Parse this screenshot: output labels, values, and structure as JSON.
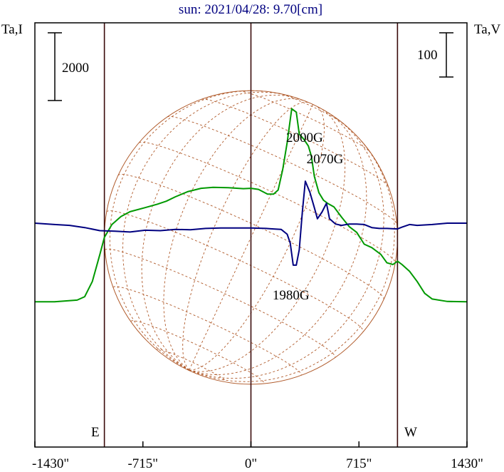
{
  "chart_data": {
    "type": "line",
    "title": "sun: 2021/04/28: 9.70[cm]",
    "left_axis_label": "Ta,I",
    "right_axis_label": "Ta,V",
    "x_ticks": [
      -1430,
      -715,
      0,
      715,
      1430
    ],
    "x_tick_labels": [
      "-1430\"",
      "-715\"",
      "0\"",
      "715\"",
      "1430\""
    ],
    "xlim": [
      -1430,
      1430
    ],
    "vertical_lines": [
      -970,
      0,
      970
    ],
    "limb_labels": {
      "east": "E",
      "west": "W"
    },
    "scale_bars": {
      "left": "2000",
      "right": "100"
    },
    "annotations": [
      {
        "text": "2000G",
        "x": 355,
        "y": 2820
      },
      {
        "text": "2070G",
        "x": 490,
        "y": 2190
      },
      {
        "text": "1980G",
        "x": 265,
        "y": -1830
      }
    ],
    "series": [
      {
        "id": "I",
        "color": "#009900",
        "x": [
          -1430,
          -1300,
          -1150,
          -1100,
          -1050,
          -1000,
          -970,
          -920,
          -860,
          -800,
          -700,
          -620,
          -560,
          -500,
          -420,
          -330,
          -250,
          -150,
          -50,
          0,
          50,
          110,
          150,
          180,
          210,
          240,
          270,
          300,
          320,
          350,
          380,
          400,
          420,
          450,
          480,
          510,
          550,
          600,
          650,
          700,
          750,
          800,
          860,
          900,
          940,
          970,
          1000,
          1050,
          1100,
          1150,
          1200,
          1300,
          1430
        ],
        "y": [
          -1900,
          -1900,
          -1850,
          -1750,
          -1300,
          -500,
          0,
          380,
          620,
          760,
          880,
          980,
          1070,
          1200,
          1350,
          1450,
          1480,
          1470,
          1440,
          1450,
          1420,
          1280,
          1280,
          1400,
          2000,
          2800,
          3800,
          3700,
          3050,
          2900,
          2700,
          2400,
          1800,
          1320,
          1100,
          1000,
          900,
          600,
          320,
          150,
          -200,
          -300,
          -500,
          -750,
          -800,
          -700,
          -800,
          -1000,
          -1300,
          -1650,
          -1820,
          -1890,
          -1900
        ]
      },
      {
        "id": "V",
        "color": "#000080",
        "x": [
          -1430,
          -1300,
          -1200,
          -1100,
          -1000,
          -900,
          -800,
          -700,
          -600,
          -500,
          -400,
          -300,
          -200,
          -100,
          0,
          100,
          150,
          200,
          240,
          260,
          280,
          300,
          320,
          340,
          360,
          390,
          420,
          440,
          470,
          500,
          520,
          560,
          600,
          650,
          700,
          750,
          800,
          850,
          900,
          970,
          1000,
          1050,
          1100,
          1200,
          1300,
          1430
        ],
        "y": [
          0,
          -3,
          -5,
          -10,
          -17,
          -18,
          -20,
          -16,
          -17,
          -14,
          -15,
          -12,
          -11,
          -11,
          -11,
          -12,
          -13,
          -14,
          -25,
          -45,
          -95,
          -95,
          -60,
          25,
          95,
          70,
          35,
          10,
          25,
          45,
          10,
          -2,
          -5,
          -2,
          -2,
          -3,
          -10,
          -12,
          -12,
          -13,
          -9,
          -3,
          -5,
          -3,
          0,
          0
        ]
      }
    ],
    "disk": {
      "radius_arcsec": 970,
      "b0_deg": -5,
      "p_deg": -25
    }
  }
}
